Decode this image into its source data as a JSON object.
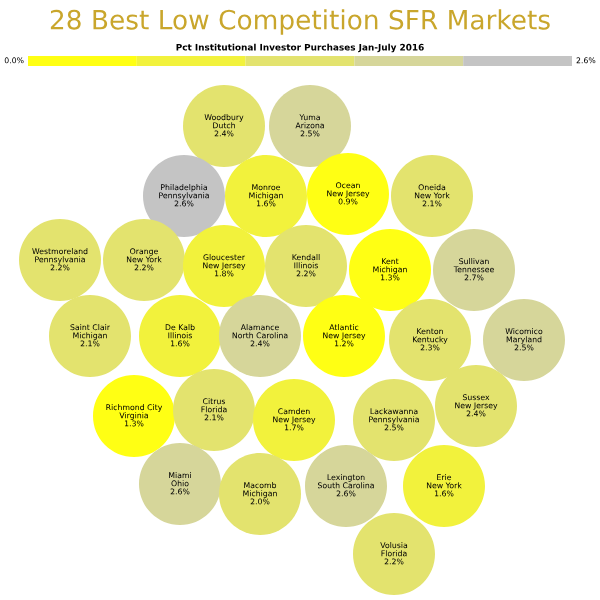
{
  "chart_data": {
    "type": "other",
    "title": "28 Best Low Competition SFR Markets",
    "subtitle": "Pct Institutional Investor Purchases Jan-July 2016",
    "categories": [
      "Woodbury\nDutch",
      "Yuma\nArizona",
      "Philadelphia\nPennsylvania",
      "Monroe\nMichigan",
      "Ocean\nNew Jersey",
      "Oneida\nNew York",
      "Westmoreland\nPennsylvania",
      "Orange\nNew York",
      "Gloucester\nNew Jersey",
      "Kendall\nIllinois",
      "Kent\nMichigan",
      "Sullivan\nTennessee",
      "Saint Clair\nMichigan",
      "De Kalb\nIllinois",
      "Alamance\nNorth Carolina",
      "Atlantic\nNew Jersey",
      "Kenton\nKentucky",
      "Wicomico\nMaryland",
      "Richmond City\nVirginia",
      "Citrus\nFlorida",
      "Camden\nNew Jersey",
      "Lackawanna\nPennsylvania",
      "Sussex\nNew Jersey",
      "Miami\nOhio",
      "Macomb\nMichigan",
      "Lexington\nSouth Carolina",
      "Erie\nNew York",
      "Volusia\nFlorida"
    ],
    "values": [
      2.4,
      2.5,
      2.6,
      1.6,
      0.9,
      2.1,
      2.2,
      2.2,
      1.8,
      2.2,
      1.3,
      2.7,
      2.1,
      1.6,
      2.4,
      1.2,
      2.3,
      2.5,
      1.3,
      2.1,
      1.7,
      2.5,
      2.4,
      2.6,
      2.0,
      2.6,
      1.6,
      2.2
    ],
    "value_labels": [
      "2.4%",
      "2.5%",
      "2.6%",
      "1.6%",
      "0.9%",
      "2.1%",
      "2.2%",
      "2.2%",
      "1.8%",
      "2.2%",
      "1.3%",
      "2.7%",
      "2.1%",
      "1.6%",
      "2.4%",
      "1.2%",
      "2.3%",
      "2.5%",
      "1.3%",
      "2.1%",
      "1.7%",
      "2.5%",
      "2.4%",
      "2.6%",
      "2.0%",
      "2.6%",
      "1.6%",
      "2.2%"
    ],
    "colors": [
      "#e3e36e",
      "#d6d69a",
      "#c4c4c4",
      "#f2f23c",
      "#ffff14",
      "#e3e36e",
      "#e3e36e",
      "#e3e36e",
      "#f2f23c",
      "#e3e36e",
      "#ffff14",
      "#d6d69a",
      "#e3e36e",
      "#f2f23c",
      "#d6d69a",
      "#ffff14",
      "#e3e36e",
      "#d6d69a",
      "#ffff14",
      "#e3e36e",
      "#f2f23c",
      "#e3e36e",
      "#e3e36e",
      "#d6d69a",
      "#e3e36e",
      "#d6d69a",
      "#f2f23c",
      "#e3e36e"
    ],
    "annotations": [
      "0.0%",
      "2.6%"
    ]
  }
}
